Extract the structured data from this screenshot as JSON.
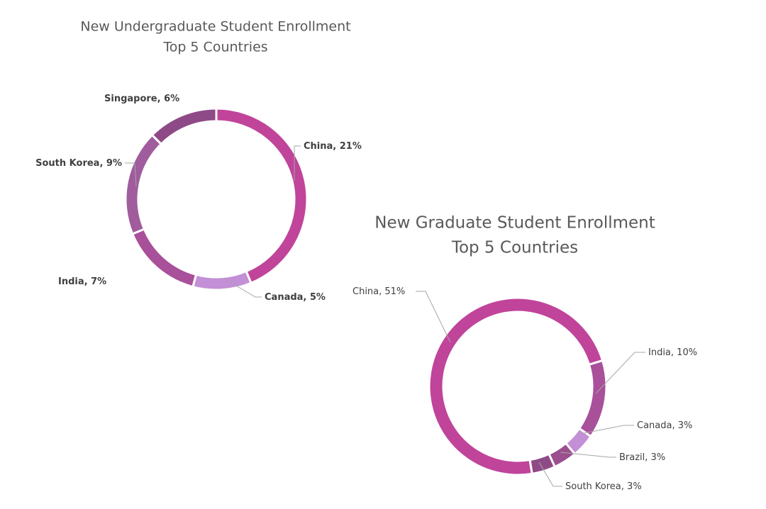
{
  "chart_data": [
    {
      "type": "donut",
      "title": "New Undergraduate Student Enrollment",
      "subtitle": "Top 5 Countries",
      "categories": [
        "China",
        "Canada",
        "India",
        "South Korea",
        "Singapore"
      ],
      "values": [
        21,
        5,
        7,
        9,
        6
      ],
      "value_labels": [
        "21%",
        "5%",
        "7%",
        "9%",
        "6%"
      ],
      "label_separator": ", ",
      "colors": [
        "#c0449a",
        "#c38fd6",
        "#a9509a",
        "#a05c9d",
        "#8e4a86"
      ]
    },
    {
      "type": "donut",
      "title": "New Graduate Student Enrollment",
      "subtitle": "Top 5 Countries",
      "categories": [
        "India",
        "Canada",
        "Brazil",
        "South Korea",
        "China"
      ],
      "values": [
        10,
        3,
        3,
        3,
        51
      ],
      "value_labels": [
        "10%",
        "3%",
        "3%",
        "3%",
        "51%"
      ],
      "label_separator": ", ",
      "colors": [
        "#a9509a",
        "#c38fd6",
        "#9b4f8e",
        "#8e4a86",
        "#c0449a"
      ]
    }
  ]
}
